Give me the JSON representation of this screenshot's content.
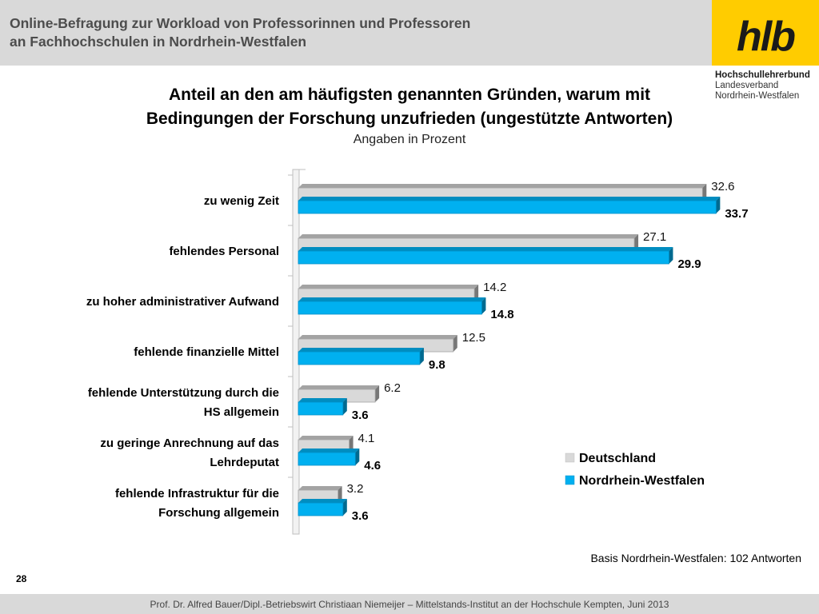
{
  "header": {
    "title": "Online-Befragung  zur  Workload von Professorinnen und Professoren\nan Fachhochschulen in Nordrhein-Westfalen"
  },
  "logo": {
    "mark": "hlb",
    "org": "Hochschullehrerbund",
    "line2": "Landesverband",
    "line3": "Nordrhein-Westfalen",
    "background": "#ffcc00"
  },
  "chart_data": {
    "type": "bar",
    "orientation": "horizontal",
    "title_bold_line1": "Anteil an den am häufigsten genannten Gründen, warum mit",
    "title_bold_line2": "Bedingungen der Forschung unzufrieden",
    "title_normal": "(ungestützte Antworten)",
    "subtitle": "Angaben in Prozent",
    "categories": [
      "zu wenig Zeit",
      "fehlendes Personal",
      "zu hoher administrativer Aufwand",
      "fehlende finanzielle Mittel",
      "fehlende Unterstützung durch die HS allgemein",
      "zu geringe Anrechnung auf das Lehrdeputat",
      "fehlende Infrastruktur für die Forschung allgemein"
    ],
    "series": [
      {
        "name": "Deutschland",
        "values": [
          32.6,
          27.1,
          14.2,
          12.5,
          6.2,
          4.1,
          3.2
        ],
        "color": "#d9d9d9"
      },
      {
        "name": "Nordrhein-Westfalen",
        "values": [
          33.7,
          29.9,
          14.8,
          9.8,
          3.6,
          4.6,
          3.6
        ],
        "color": "#00b0f0"
      }
    ],
    "xlim": [
      0,
      34
    ],
    "grid": false,
    "legend": "bottom-right"
  },
  "basis": "Basis Nordrhein-Westfalen: 102 Antworten",
  "page_number": "28",
  "footer": "Prof. Dr. Alfred Bauer/Dipl.-Betriebswirt Christiaan Niemeijer – Mittelstands-Institut an der Hochschule Kempten, Juni 2013"
}
